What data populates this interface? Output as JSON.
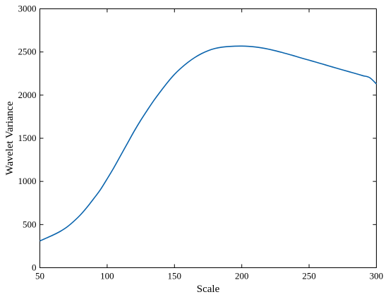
{
  "chart_data": {
    "type": "line",
    "title": "",
    "xlabel": "Scale",
    "ylabel": "Wavelet Variance",
    "xlim": [
      50,
      300
    ],
    "ylim": [
      0,
      3000
    ],
    "xticks": [
      50,
      100,
      150,
      200,
      250,
      300
    ],
    "yticks": [
      0,
      500,
      1000,
      1500,
      2000,
      2500,
      3000
    ],
    "xtick_labels": [
      "50",
      "100",
      "150",
      "200",
      "250",
      "300"
    ],
    "ytick_labels": [
      "0",
      "500",
      "1000",
      "1500",
      "2000",
      "2500",
      "3000"
    ],
    "grid": false,
    "legend": "none",
    "series": [
      {
        "color": "#0a64ad",
        "x": [
          50,
          55,
          60,
          65,
          70,
          75,
          80,
          85,
          90,
          95,
          100,
          105,
          110,
          115,
          120,
          125,
          130,
          135,
          140,
          145,
          150,
          155,
          160,
          165,
          170,
          175,
          180,
          185,
          190,
          195,
          200,
          205,
          210,
          215,
          220,
          225,
          230,
          235,
          240,
          245,
          250,
          255,
          260,
          265,
          270,
          275,
          280,
          285,
          290,
          295,
          300
        ],
        "y": [
          310,
          345,
          380,
          420,
          470,
          535,
          610,
          700,
          800,
          905,
          1030,
          1160,
          1300,
          1440,
          1580,
          1710,
          1830,
          1945,
          2050,
          2150,
          2240,
          2315,
          2380,
          2435,
          2480,
          2515,
          2540,
          2555,
          2563,
          2567,
          2568,
          2565,
          2558,
          2547,
          2532,
          2514,
          2494,
          2473,
          2450,
          2427,
          2405,
          2383,
          2360,
          2337,
          2314,
          2292,
          2270,
          2248,
          2225,
          2203,
          2130
        ]
      }
    ]
  }
}
